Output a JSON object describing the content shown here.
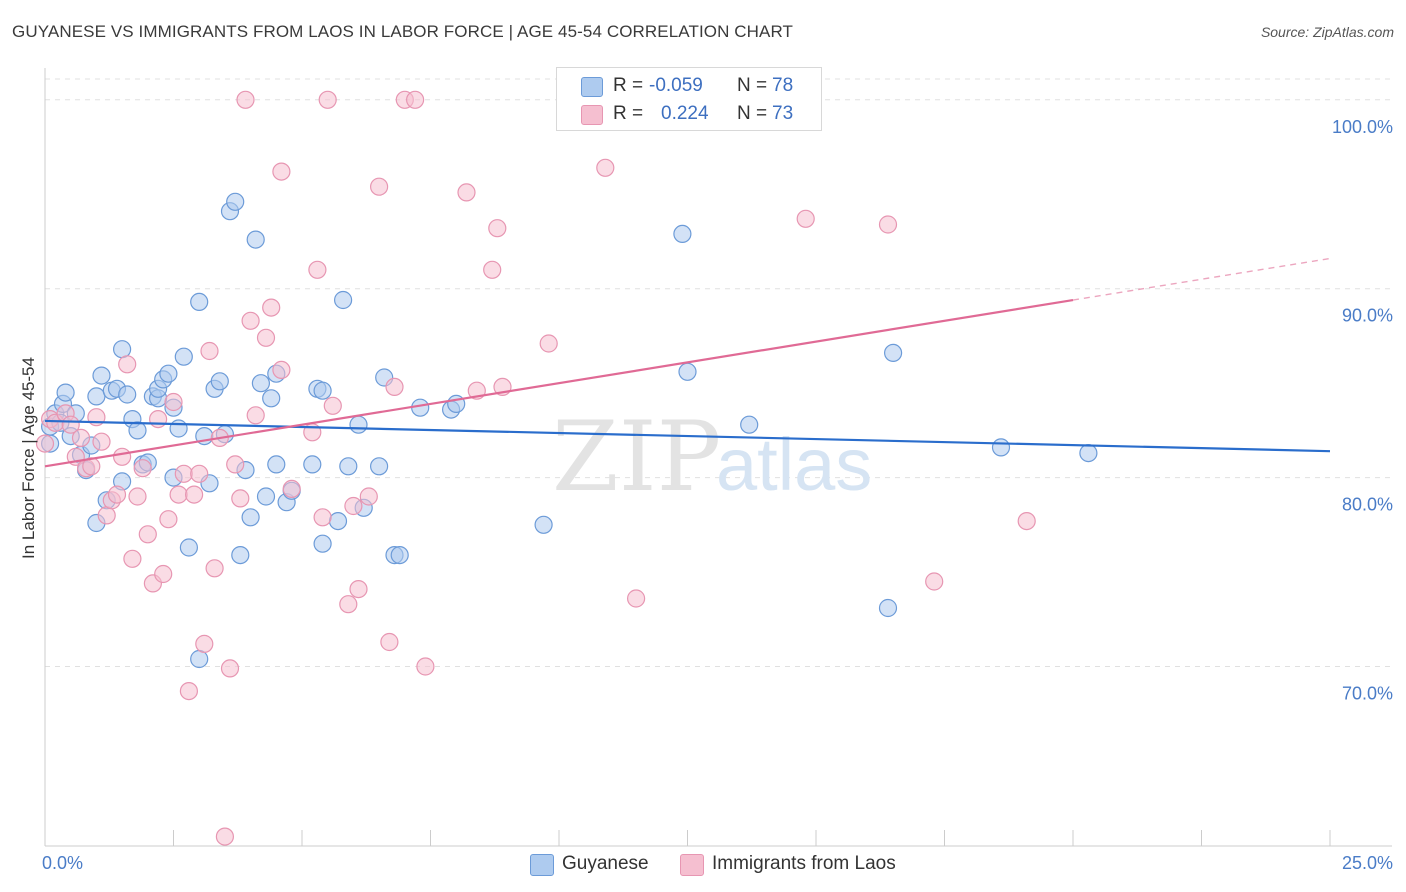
{
  "title": "GUYANESE VS IMMIGRANTS FROM LAOS IN LABOR FORCE | AGE 45-54 CORRELATION CHART",
  "source": "Source: ZipAtlas.com",
  "watermark": {
    "zip": "ZIP",
    "atlas": "atlas"
  },
  "colors": {
    "blue_fill": "#aecbef",
    "blue_stroke": "#6c9bd8",
    "blue_line": "#2a6dcc",
    "pink_fill": "#f5bfd0",
    "pink_stroke": "#e796b2",
    "pink_line": "#e06a95",
    "grid": "#e0e0e0",
    "axis_label": "#4a7cc7"
  },
  "stats": [
    {
      "series": "Guyanese",
      "r_label": "R =",
      "r_value": "-0.059",
      "n_label": "N =",
      "n_value": "78",
      "swatch": "#aecbef",
      "swatch_border": "#6c9bd8"
    },
    {
      "series": "Immigrants from Laos",
      "r_label": "R =",
      "r_value": "0.224",
      "n_label": "N =",
      "n_value": "73",
      "swatch": "#f5bfd0",
      "swatch_border": "#e796b2"
    }
  ],
  "legend": [
    {
      "label": "Guyanese",
      "swatch": "#aecbef",
      "border": "#6c9bd8"
    },
    {
      "label": "Immigrants from Laos",
      "swatch": "#f5bfd0",
      "border": "#e796b2"
    }
  ],
  "chart_data": {
    "type": "scatter",
    "title": "GUYANESE VS IMMIGRANTS FROM LAOS IN LABOR FORCE | AGE 45-54 CORRELATION CHART",
    "xlabel": "",
    "ylabel": "In Labor Force | Age 45-54",
    "xlim": [
      0,
      25
    ],
    "ylim": [
      60.5,
      102
    ],
    "x_tick_labels": [
      {
        "value": 0,
        "label": "0.0%"
      },
      {
        "value": 25,
        "label": "25.0%"
      }
    ],
    "y_ticks": [
      {
        "value": 70,
        "label": "70.0%"
      },
      {
        "value": 80,
        "label": "80.0%"
      },
      {
        "value": 90,
        "label": "90.0%"
      },
      {
        "value": 100,
        "label": "100.0%"
      }
    ],
    "legend_position": "bottom-center",
    "series": [
      {
        "name": "Guyanese",
        "r": -0.059,
        "n": 78,
        "trend": {
          "x": [
            0,
            25
          ],
          "y": [
            83.0,
            81.4
          ],
          "dashed_from": null
        },
        "points": [
          [
            0.1,
            82.7
          ],
          [
            0.1,
            81.8
          ],
          [
            0.2,
            83.4
          ],
          [
            0.3,
            82.9
          ],
          [
            0.35,
            83.9
          ],
          [
            0.4,
            84.5
          ],
          [
            0.5,
            82.2
          ],
          [
            0.6,
            83.4
          ],
          [
            0.7,
            81.2
          ],
          [
            0.8,
            80.4
          ],
          [
            0.9,
            81.7
          ],
          [
            1.0,
            77.6
          ],
          [
            1.0,
            84.3
          ],
          [
            1.1,
            85.4
          ],
          [
            1.2,
            78.8
          ],
          [
            1.3,
            84.6
          ],
          [
            1.4,
            84.7
          ],
          [
            1.5,
            79.8
          ],
          [
            1.5,
            86.8
          ],
          [
            1.6,
            84.4
          ],
          [
            1.7,
            83.1
          ],
          [
            1.8,
            82.5
          ],
          [
            1.9,
            80.7
          ],
          [
            2.0,
            80.8
          ],
          [
            2.1,
            84.3
          ],
          [
            2.2,
            84.2
          ],
          [
            2.2,
            84.7
          ],
          [
            2.3,
            85.2
          ],
          [
            2.4,
            85.5
          ],
          [
            2.5,
            83.7
          ],
          [
            2.5,
            80.0
          ],
          [
            2.6,
            82.6
          ],
          [
            2.7,
            86.4
          ],
          [
            2.8,
            76.3
          ],
          [
            3.0,
            89.3
          ],
          [
            3.0,
            70.4
          ],
          [
            3.1,
            82.2
          ],
          [
            3.2,
            79.7
          ],
          [
            3.3,
            84.7
          ],
          [
            3.4,
            85.1
          ],
          [
            3.5,
            82.3
          ],
          [
            3.6,
            94.1
          ],
          [
            3.7,
            94.6
          ],
          [
            3.8,
            75.9
          ],
          [
            3.9,
            80.4
          ],
          [
            4.0,
            77.9
          ],
          [
            4.1,
            92.6
          ],
          [
            4.2,
            85.0
          ],
          [
            4.3,
            79.0
          ],
          [
            4.4,
            84.2
          ],
          [
            4.5,
            85.5
          ],
          [
            4.5,
            80.7
          ],
          [
            4.7,
            78.7
          ],
          [
            4.8,
            79.3
          ],
          [
            5.2,
            80.7
          ],
          [
            5.3,
            84.7
          ],
          [
            5.4,
            84.6
          ],
          [
            5.4,
            76.5
          ],
          [
            5.7,
            77.7
          ],
          [
            5.8,
            89.4
          ],
          [
            5.9,
            80.6
          ],
          [
            6.1,
            82.8
          ],
          [
            6.2,
            78.4
          ],
          [
            6.5,
            80.6
          ],
          [
            6.6,
            85.3
          ],
          [
            6.8,
            75.9
          ],
          [
            6.9,
            75.9
          ],
          [
            7.3,
            83.7
          ],
          [
            7.9,
            83.6
          ],
          [
            8.0,
            83.9
          ],
          [
            9.7,
            77.5
          ],
          [
            12.4,
            92.9
          ],
          [
            12.5,
            85.6
          ],
          [
            13.7,
            82.8
          ],
          [
            16.4,
            73.1
          ],
          [
            16.5,
            86.6
          ],
          [
            18.6,
            81.6
          ],
          [
            20.3,
            81.3
          ]
        ]
      },
      {
        "name": "Immigrants from Laos",
        "r": 0.224,
        "n": 73,
        "trend": {
          "x": [
            0,
            25
          ],
          "y": [
            80.6,
            91.6
          ],
          "dashed_from": 20.0
        },
        "points": [
          [
            0.1,
            83.1
          ],
          [
            0.2,
            82.9
          ],
          [
            0.4,
            83.4
          ],
          [
            0.5,
            82.8
          ],
          [
            0.6,
            81.1
          ],
          [
            0.7,
            82.1
          ],
          [
            0.8,
            80.5
          ],
          [
            0.9,
            80.6
          ],
          [
            1.0,
            83.2
          ],
          [
            1.1,
            81.9
          ],
          [
            1.2,
            78.0
          ],
          [
            1.3,
            78.8
          ],
          [
            1.4,
            79.1
          ],
          [
            1.5,
            81.1
          ],
          [
            1.6,
            86.0
          ],
          [
            1.7,
            75.7
          ],
          [
            1.8,
            79.0
          ],
          [
            1.9,
            80.5
          ],
          [
            2.0,
            77.0
          ],
          [
            2.1,
            74.4
          ],
          [
            2.2,
            83.1
          ],
          [
            2.3,
            74.9
          ],
          [
            2.4,
            77.8
          ],
          [
            2.5,
            84.0
          ],
          [
            2.6,
            79.1
          ],
          [
            2.7,
            80.2
          ],
          [
            2.8,
            68.7
          ],
          [
            2.9,
            79.1
          ],
          [
            3.0,
            80.2
          ],
          [
            3.1,
            71.2
          ],
          [
            3.2,
            86.7
          ],
          [
            3.3,
            75.2
          ],
          [
            3.4,
            82.1
          ],
          [
            3.5,
            61.0
          ],
          [
            3.6,
            69.9
          ],
          [
            3.7,
            80.7
          ],
          [
            3.8,
            78.9
          ],
          [
            3.9,
            100.0
          ],
          [
            4.0,
            88.3
          ],
          [
            4.1,
            83.3
          ],
          [
            4.3,
            87.4
          ],
          [
            4.4,
            89.0
          ],
          [
            4.6,
            85.7
          ],
          [
            4.6,
            96.2
          ],
          [
            4.8,
            79.4
          ],
          [
            5.2,
            82.4
          ],
          [
            5.3,
            91.0
          ],
          [
            5.4,
            77.9
          ],
          [
            5.5,
            100.0
          ],
          [
            5.6,
            83.8
          ],
          [
            5.9,
            73.3
          ],
          [
            6.0,
            78.5
          ],
          [
            6.1,
            74.1
          ],
          [
            6.3,
            79.0
          ],
          [
            6.5,
            95.4
          ],
          [
            6.7,
            71.3
          ],
          [
            6.8,
            84.8
          ],
          [
            7.0,
            100.0
          ],
          [
            7.2,
            100.0
          ],
          [
            7.4,
            70.0
          ],
          [
            8.2,
            95.1
          ],
          [
            8.4,
            84.6
          ],
          [
            8.7,
            91.0
          ],
          [
            8.8,
            93.2
          ],
          [
            8.9,
            84.8
          ],
          [
            9.8,
            87.1
          ],
          [
            10.9,
            96.4
          ],
          [
            11.5,
            73.6
          ],
          [
            14.8,
            93.7
          ],
          [
            16.4,
            93.4
          ],
          [
            17.3,
            74.5
          ],
          [
            19.1,
            77.7
          ],
          [
            0.0,
            81.8
          ]
        ]
      }
    ]
  }
}
